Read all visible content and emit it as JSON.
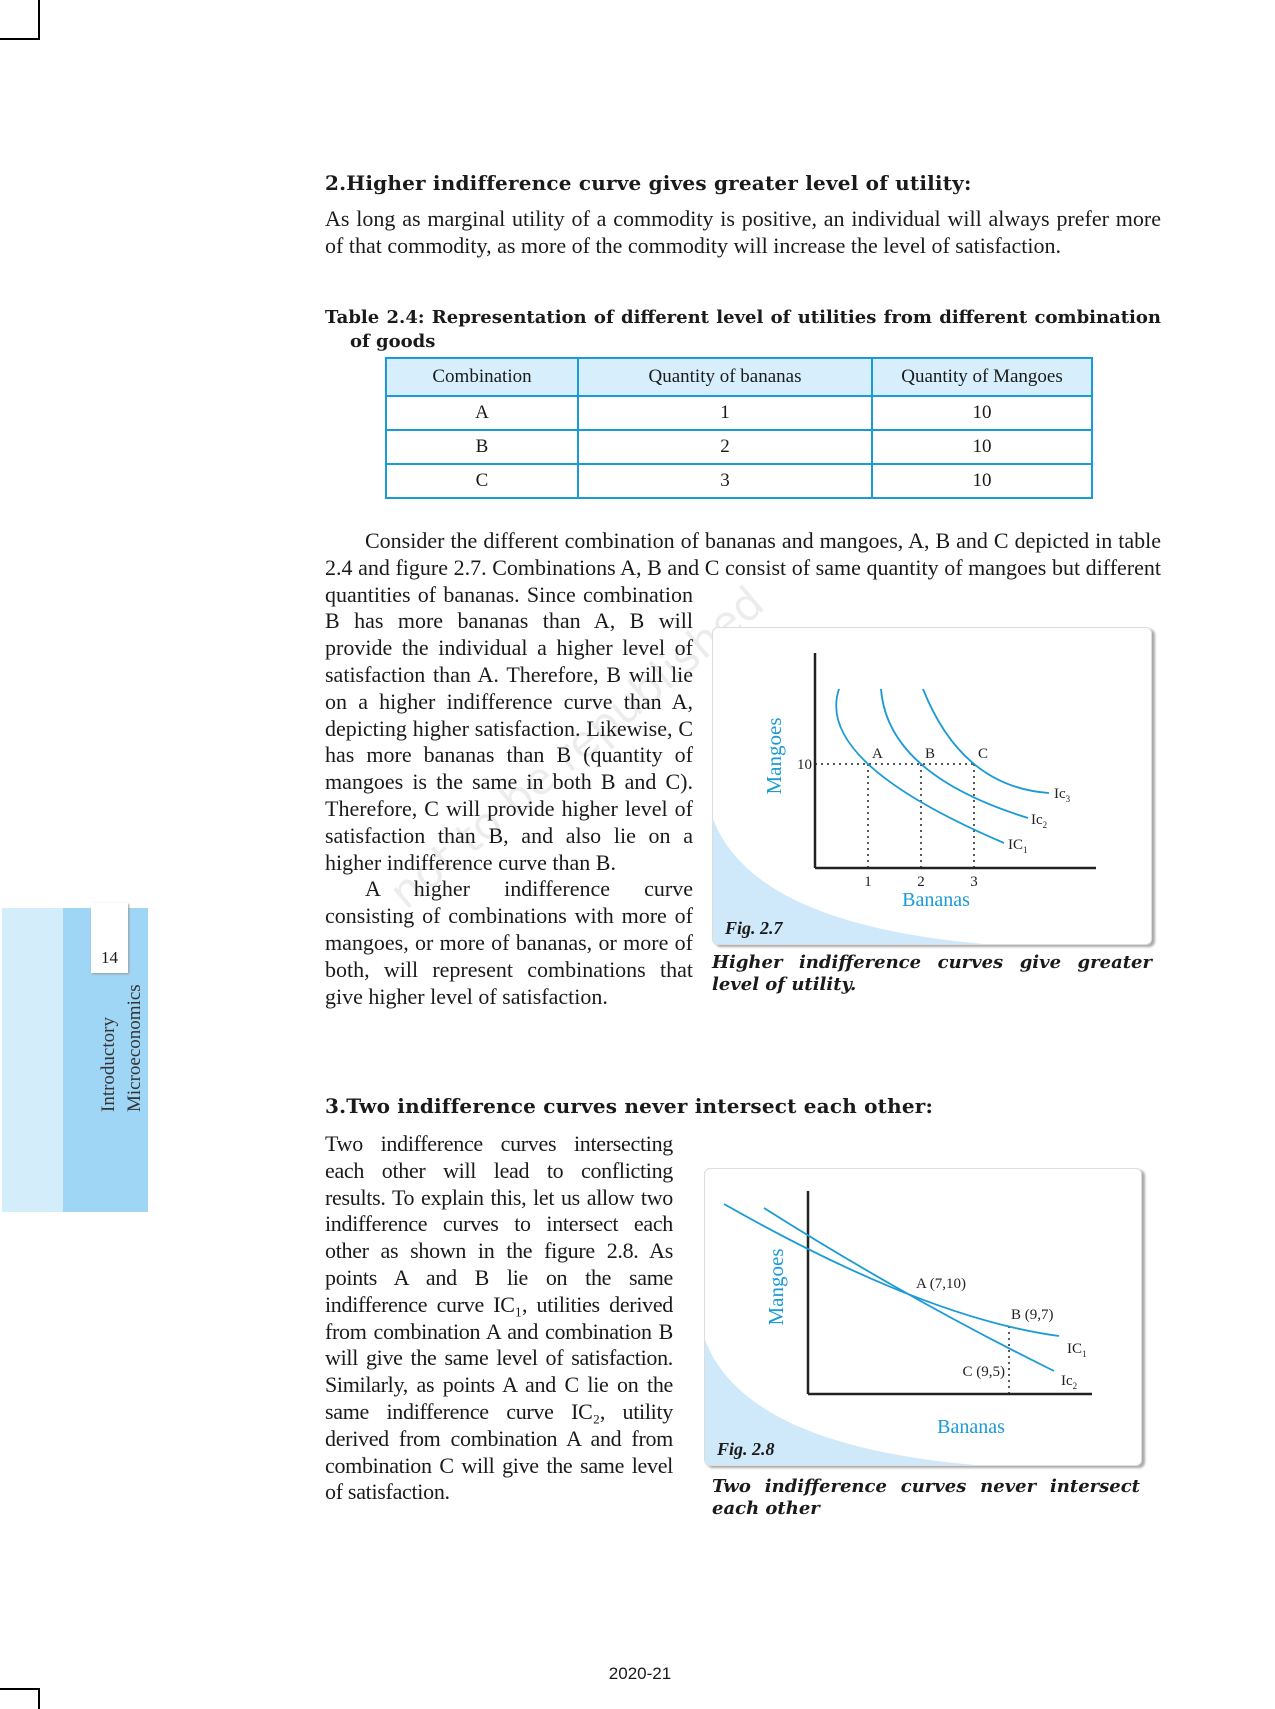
{
  "section2": {
    "heading": "2.Higher indifference curve gives greater level of utility:",
    "para1": "As long as marginal utility of a commodity is positive, an individual will always prefer more of that commodity, as more of the commodity will increase the level of satisfaction."
  },
  "table": {
    "caption_line1": "Table 2.4: Representation of different level of utilities from different combination",
    "caption_line2": "of goods",
    "headers": [
      "Combination",
      "Quantity of bananas",
      "Quantity of Mangoes"
    ],
    "rows": [
      [
        "A",
        "1",
        "10"
      ],
      [
        "B",
        "2",
        "10"
      ],
      [
        "C",
        "3",
        "10"
      ]
    ]
  },
  "para2": "Consider the different combination of bananas and mangoes, A, B and C depicted in table 2.4 and figure 2.7. Combinations A, B and C consist of same quantity of mangoes but different quantities of bananas. Since combination B has more bananas than A, B will provide the individual a higher level of satisfaction than A. Therefore, B will lie on a higher indifference curve than A, depicting higher satisfaction. Likewise, C has more bananas than B (quantity of mangoes is the same in both B and C). Therefore, C will provide higher level of satisfaction than B, and also lie on a higher indifference curve than B.",
  "para3": "A higher indifference curve consisting of combinations with more of mangoes, or more of bananas, or more of both, will represent combinations that give higher level of satisfaction.",
  "section3": {
    "heading": "3.Two indifference curves never intersect each other:",
    "para": "Two indifference curves intersecting each other will lead to conflicting results. To explain this, let us allow two indifference curves to intersect each other as shown in the figure 2.8. As points A and B lie on the same indifference curve IC₁, utilities derived from combination A and combination B will give the same level of satisfaction. Similarly, as points A and C lie on the same indifference curve IC₂, utility derived from combination A and from combination C will give the same level of satisfaction."
  },
  "chart_data": [
    {
      "type": "line",
      "figure_label": "Fig. 2.7",
      "caption": "Higher indifference curves give greater level of utility.",
      "xlabel": "Bananas",
      "ylabel": "Mangoes",
      "x_ticks": [
        "1",
        "2",
        "3"
      ],
      "y_ticks": [
        "10"
      ],
      "points": [
        {
          "label": "A",
          "x": 1,
          "y": 10
        },
        {
          "label": "B",
          "x": 2,
          "y": 10
        },
        {
          "label": "C",
          "x": 3,
          "y": 10
        }
      ],
      "series": [
        {
          "name": "IC",
          "sub": "1"
        },
        {
          "name": "Ic",
          "sub": "2"
        },
        {
          "name": "Ic",
          "sub": "3"
        }
      ],
      "color": "#1a9ad6"
    },
    {
      "type": "line",
      "figure_label": "Fig. 2.8",
      "caption": "Two indifference curves never intersect each other",
      "xlabel": "Bananas",
      "ylabel": "Mangoes",
      "points": [
        {
          "label": "A (7,10)",
          "x": 7,
          "y": 10
        },
        {
          "label": "B (9,7)",
          "x": 9,
          "y": 7
        },
        {
          "label": "C (9,5)",
          "x": 9,
          "y": 5
        }
      ],
      "series": [
        {
          "name": "IC",
          "sub": "1"
        },
        {
          "name": "Ic",
          "sub": "2"
        }
      ],
      "color": "#1a9ad6"
    }
  ],
  "sidebar": {
    "page_number": "14",
    "book_line1": "Introductory",
    "book_line2": "Microeconomics"
  },
  "watermark": "not to be republished",
  "footer": "2020-21",
  "colors": {
    "accent": "#1a9ad6",
    "sidebar_light": "#d3edfb",
    "sidebar_dark": "#9fd6f6",
    "table_header": "#d7effc"
  }
}
